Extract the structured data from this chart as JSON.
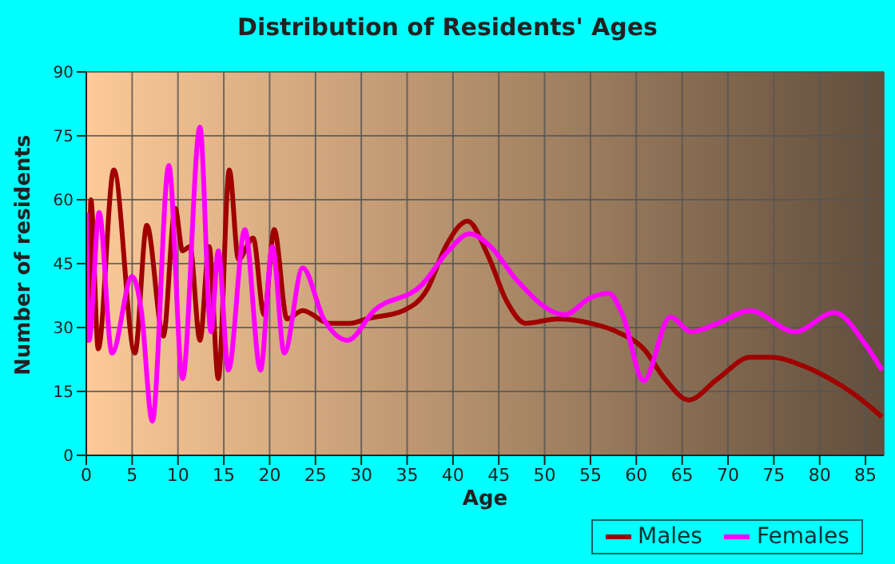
{
  "chart_data": {
    "type": "line",
    "title": "Distribution of Residents' Ages",
    "xlabel": "Age",
    "ylabel": "Number of residents",
    "xlim": [
      0,
      87
    ],
    "xticks": [
      0,
      5,
      10,
      15,
      20,
      25,
      30,
      35,
      40,
      45,
      50,
      55,
      60,
      65,
      70,
      75,
      80,
      85
    ],
    "ylim": [
      0,
      90
    ],
    "yticks": [
      0,
      15,
      30,
      45,
      60,
      75,
      90
    ],
    "grid": true,
    "legend": "bottom",
    "marker": "none",
    "line_style": "solid",
    "series": [
      {
        "name": "Males",
        "color": "#a00000",
        "x": [
          0,
          0.2,
          0.5,
          1.3,
          3,
          5.3,
          6.6,
          8.4,
          9.7,
          10.5,
          11.3,
          12.4,
          13.4,
          14.4,
          15.6,
          16.6,
          18.2,
          19.4,
          20.5,
          21.9,
          23.6,
          26.5,
          28.8,
          30.5,
          34.6,
          37.2,
          39.2,
          41.6,
          43.8,
          45.9,
          47.9,
          51.4,
          55,
          57.9,
          60.8,
          63.1,
          65.7,
          68.9,
          72.4,
          74.7,
          78.2,
          81.1,
          84,
          86.8
        ],
        "values": [
          45,
          27,
          60,
          25,
          67,
          24,
          54,
          28,
          58,
          48,
          49,
          27,
          49,
          18,
          67,
          46,
          51,
          33,
          53,
          32,
          34,
          31,
          31,
          32,
          34,
          39,
          49,
          55,
          47,
          36,
          31,
          32,
          31,
          29,
          25,
          18,
          13,
          18,
          23,
          23,
          21,
          18,
          14,
          9
        ]
      },
      {
        "name": "Females",
        "color": "#ff00ff",
        "x": [
          0,
          0.3,
          1.4,
          2.8,
          5,
          6,
          7.2,
          9,
          10.5,
          12.4,
          13.6,
          14.4,
          15.5,
          17.3,
          19,
          20.3,
          21.6,
          23.6,
          25.9,
          28.5,
          31.4,
          36.6,
          39.5,
          41.8,
          44.1,
          47,
          52.2,
          55,
          57,
          58.5,
          60.8,
          63.7,
          66,
          68.9,
          72.4,
          77.3,
          81.6,
          85,
          86.8
        ],
        "values": [
          57,
          27,
          57,
          24,
          42,
          34,
          8,
          68,
          18,
          77,
          29,
          48,
          20,
          53,
          20,
          49,
          24,
          44,
          32,
          27,
          34,
          40,
          48,
          52,
          49,
          41,
          33,
          37,
          38,
          33,
          17.5,
          32.5,
          29,
          31,
          34,
          29,
          33.5,
          26,
          20
        ]
      }
    ]
  }
}
